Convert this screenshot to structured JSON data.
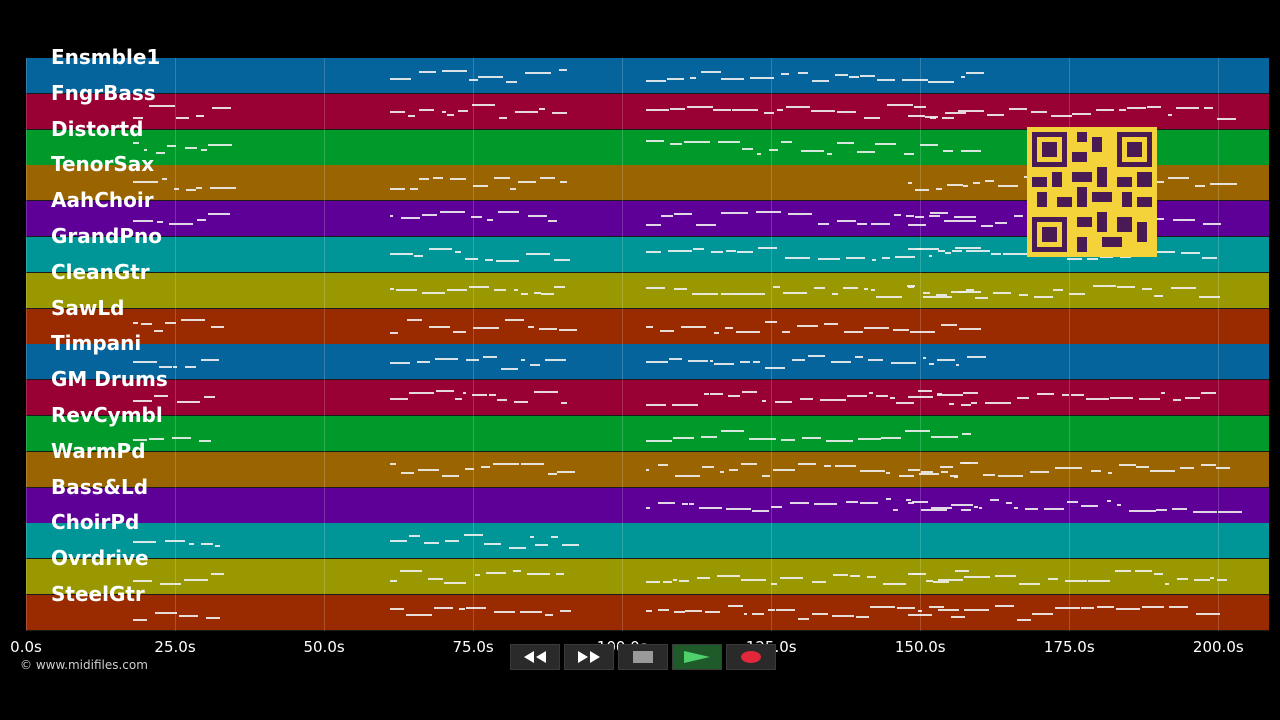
{
  "tracks": [
    {
      "name": "Ensmble1",
      "color": "#05649b"
    },
    {
      "name": "FngrBass",
      "color": "#990033"
    },
    {
      "name": "Distortd",
      "color": "#009a2a"
    },
    {
      "name": "TenorSax",
      "color": "#9a6400"
    },
    {
      "name": "AahChoir",
      "color": "#5e0097"
    },
    {
      "name": "GrandPno",
      "color": "#009697"
    },
    {
      "name": "CleanGtr",
      "color": "#9a9800"
    },
    {
      "name": "SawLd",
      "color": "#9a2a00"
    },
    {
      "name": "Timpani",
      "color": "#05649b"
    },
    {
      "name": "GM Drums",
      "color": "#990033"
    },
    {
      "name": "RevCymbl",
      "color": "#009a2a"
    },
    {
      "name": "WarmPd",
      "color": "#9a6400"
    },
    {
      "name": "Bass&Ld",
      "color": "#5e0097"
    },
    {
      "name": "ChoirPd",
      "color": "#009697"
    },
    {
      "name": "Ovrdrive",
      "color": "#9a9800"
    },
    {
      "name": "SteelGtr",
      "color": "#9a2a00"
    }
  ],
  "timeline": {
    "ticks": [
      "0.0s",
      "25.0s",
      "50.0s",
      "75.0s",
      "100.0s",
      "125.0s",
      "150.0s",
      "175.0s",
      "200.0s"
    ],
    "tick_values": [
      0,
      25,
      50,
      75,
      100,
      125,
      150,
      175,
      200
    ],
    "max_seconds": 208.5
  },
  "copyright": "© www.midifiles.com",
  "transport": {
    "buttons": [
      "rewind-icon",
      "fast-forward-icon",
      "stop-icon",
      "play-icon",
      "record-icon"
    ]
  }
}
